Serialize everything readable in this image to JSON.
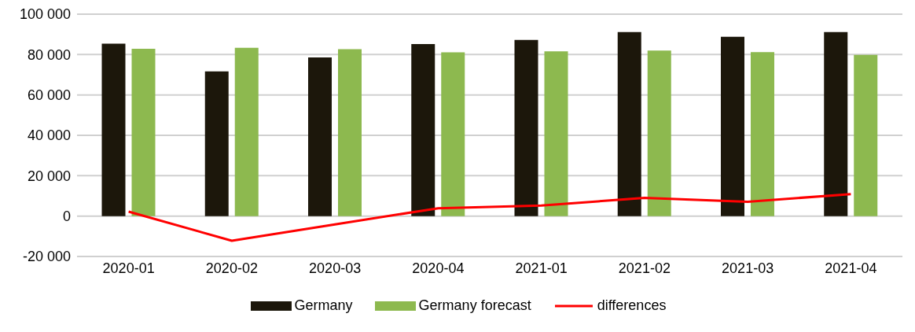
{
  "chart_data": {
    "type": "bar",
    "categories": [
      "2020-01",
      "2020-02",
      "2020-03",
      "2020-04",
      "2021-01",
      "2021-02",
      "2021-03",
      "2021-04"
    ],
    "series": [
      {
        "name": "Germany",
        "color": "#1c170b",
        "values": [
          85400,
          71700,
          78600,
          85200,
          87200,
          91100,
          88800,
          91100
        ]
      },
      {
        "name": "Germany forecast",
        "color": "#8db94f",
        "values": [
          82900,
          83300,
          82700,
          81100,
          81600,
          82000,
          81200,
          79800
        ]
      },
      {
        "name": "differences",
        "type": "line",
        "color": "#ff0000",
        "values": [
          2200,
          -12200,
          -4100,
          3900,
          5200,
          9000,
          7100,
          10900
        ]
      }
    ],
    "ylim": [
      -20000,
      100000
    ],
    "yticks": [
      {
        "value": -20000,
        "label": "-20 000"
      },
      {
        "value": 0,
        "label": "0"
      },
      {
        "value": 20000,
        "label": "20 000"
      },
      {
        "value": 40000,
        "label": "40 000"
      },
      {
        "value": 60000,
        "label": "60 000"
      },
      {
        "value": 80000,
        "label": "80 000"
      },
      {
        "value": 100000,
        "label": "100 000"
      }
    ],
    "grid": "y",
    "legend": "bottom",
    "marker": "none",
    "line_style": "solid"
  }
}
